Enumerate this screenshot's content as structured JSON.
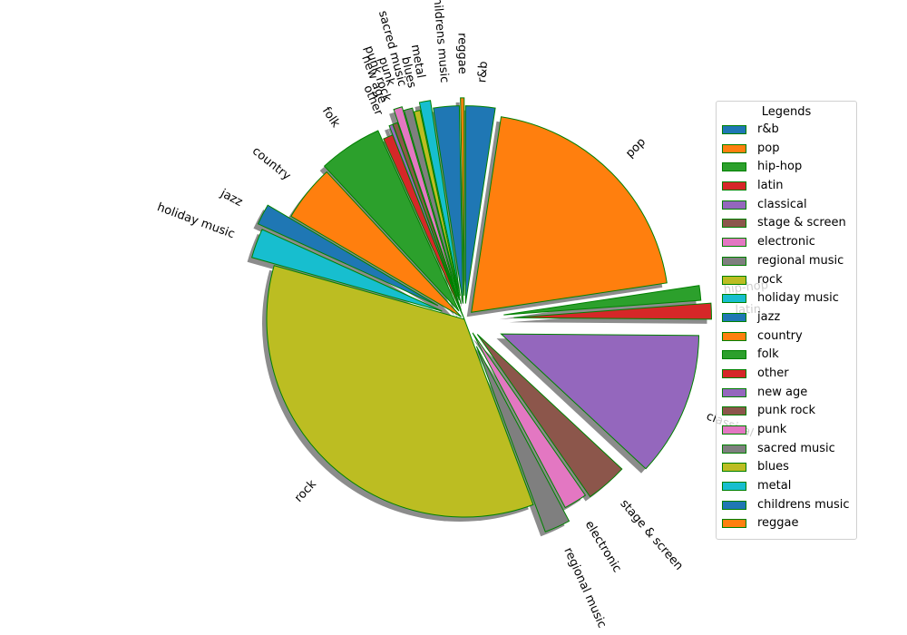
{
  "chart_data": {
    "type": "pie",
    "title": "",
    "legend": {
      "title": "Legends",
      "placement": "right"
    },
    "edge_color": "#008000",
    "shadow": true,
    "start_angle_deg": 90,
    "direction": "clockwise",
    "slices": [
      {
        "label": "r&b",
        "value": 2.4,
        "explode": 0.08,
        "color": "#1f77b4"
      },
      {
        "label": "pop",
        "value": 20.2,
        "explode": 0.05,
        "color": "#ff7f0e"
      },
      {
        "label": "hip-hop",
        "value": 1.2,
        "explode": 0.2,
        "color": "#2ca02c"
      },
      {
        "label": "latin",
        "value": 1.3,
        "explode": 0.25,
        "color": "#d62728"
      },
      {
        "label": "classical",
        "value": 11.8,
        "explode": 0.2,
        "color": "#9467bd"
      },
      {
        "label": "stage & screen",
        "value": 3.4,
        "explode": 0.1,
        "color": "#8c564b"
      },
      {
        "label": "electronic",
        "value": 1.9,
        "explode": 0.08,
        "color": "#e377c2"
      },
      {
        "label": "regional music",
        "value": 2.1,
        "explode": 0.15,
        "color": "#7f7f7f"
      },
      {
        "label": "rock",
        "value": 35.0,
        "explode": 0.0,
        "color": "#bcbd22"
      },
      {
        "label": "holiday music",
        "value": 2.4,
        "explode": 0.12,
        "color": "#17becf"
      },
      {
        "label": "jazz",
        "value": 1.7,
        "explode": 0.15,
        "color": "#1f77b4"
      },
      {
        "label": "country",
        "value": 4.6,
        "explode": 0.02,
        "color": "#ff7f0e"
      },
      {
        "label": "folk",
        "value": 5.2,
        "explode": 0.05,
        "color": "#2ca02c"
      },
      {
        "label": "other",
        "value": 0.8,
        "explode": 0.0,
        "color": "#d62728"
      },
      {
        "label": "new age",
        "value": 0.3,
        "explode": 0.05,
        "color": "#9467bd"
      },
      {
        "label": "punk rock",
        "value": 0.4,
        "explode": 0.05,
        "color": "#8c564b"
      },
      {
        "label": "punk",
        "value": 0.7,
        "explode": 0.12,
        "color": "#e377c2"
      },
      {
        "label": "sacred music",
        "value": 0.7,
        "explode": 0.1,
        "color": "#7f7f7f"
      },
      {
        "label": "blues",
        "value": 0.5,
        "explode": 0.08,
        "color": "#bcbd22"
      },
      {
        "label": "metal",
        "value": 0.9,
        "explode": 0.12,
        "color": "#17becf"
      },
      {
        "label": "childrens music",
        "value": 2.1,
        "explode": 0.08,
        "color": "#1f77b4"
      },
      {
        "label": "reggae",
        "value": 0.3,
        "explode": 0.12,
        "color": "#ff7f0e"
      }
    ]
  }
}
